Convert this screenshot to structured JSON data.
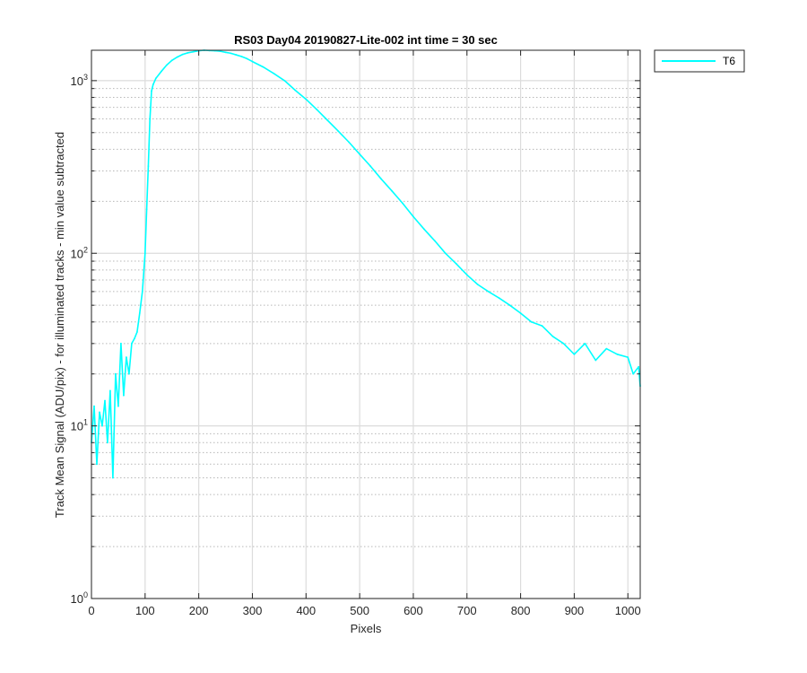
{
  "chart_data": {
    "type": "line",
    "title": "RS03 Day04 20190827-Lite-002 int time = 30 sec",
    "xlabel": "Pixels",
    "ylabel": "Track Mean Signal (ADU/pix) - for illuminated tracks - min value subtracted",
    "x_scale": "linear",
    "y_scale": "log",
    "xlim": [
      0,
      1023
    ],
    "ylim": [
      1,
      1500
    ],
    "grid": true,
    "legend_position": "outside-top-right",
    "x_ticks": [
      0,
      100,
      200,
      300,
      400,
      500,
      600,
      700,
      800,
      900,
      1000
    ],
    "x_tick_labels": [
      "0",
      "100",
      "200",
      "300",
      "400",
      "500",
      "600",
      "700",
      "800",
      "900",
      "1000"
    ],
    "y_ticks": [
      1,
      10,
      100,
      1000
    ],
    "y_tick_labels": [
      {
        "base": "10",
        "exp": "0"
      },
      {
        "base": "10",
        "exp": "1"
      },
      {
        "base": "10",
        "exp": "2"
      },
      {
        "base": "10",
        "exp": "3"
      }
    ],
    "series": [
      {
        "name": "T6",
        "color": "#00ffff",
        "x": [
          0,
          5,
          10,
          15,
          20,
          25,
          30,
          35,
          40,
          45,
          50,
          55,
          60,
          65,
          70,
          75,
          80,
          85,
          90,
          95,
          100,
          103,
          106,
          109,
          112,
          115,
          120,
          130,
          140,
          150,
          160,
          170,
          180,
          190,
          200,
          210,
          220,
          230,
          240,
          250,
          260,
          270,
          280,
          290,
          300,
          320,
          340,
          360,
          380,
          400,
          420,
          440,
          460,
          480,
          500,
          520,
          540,
          560,
          580,
          600,
          620,
          640,
          660,
          680,
          700,
          720,
          740,
          760,
          780,
          800,
          820,
          840,
          860,
          880,
          900,
          920,
          940,
          960,
          980,
          1000,
          1010,
          1020,
          1023
        ],
        "values": [
          8,
          13,
          6,
          12,
          10,
          14,
          8,
          16,
          5,
          20,
          13,
          30,
          15,
          25,
          20,
          30,
          32,
          35,
          45,
          60,
          100,
          180,
          320,
          600,
          870,
          950,
          1030,
          1130,
          1230,
          1310,
          1370,
          1420,
          1450,
          1470,
          1490,
          1500,
          1495,
          1490,
          1480,
          1460,
          1440,
          1410,
          1380,
          1340,
          1290,
          1200,
          1100,
          1000,
          880,
          780,
          680,
          590,
          510,
          440,
          375,
          320,
          270,
          230,
          195,
          163,
          138,
          118,
          100,
          87,
          75,
          66,
          60,
          55,
          50,
          45,
          40,
          38,
          33,
          30,
          26,
          30,
          24,
          28,
          26,
          25,
          20,
          22,
          17
        ]
      }
    ]
  }
}
